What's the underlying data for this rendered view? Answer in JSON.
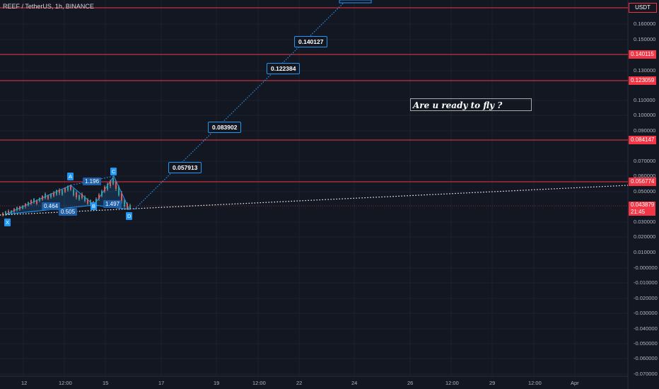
{
  "header": {
    "title": "REEF / TetherUS, 1h, BINANCE"
  },
  "price_axis": {
    "currency": "USDT",
    "tick_labels": [
      "0.160000",
      "0.150000",
      "0.130000",
      "0.110000",
      "0.100000",
      "0.090000",
      "0.070000",
      "0.060000",
      "0.050000",
      "0.030000",
      "0.020000",
      "0.010000",
      "-0.000000",
      "-0.010000",
      "-0.020000",
      "-0.030000",
      "-0.040000",
      "-0.050000",
      "-0.060000",
      "-0.070000"
    ],
    "levels": [
      {
        "value": "0.140115",
        "color": "#f23645"
      },
      {
        "value": "0.123059",
        "color": "#f23645"
      },
      {
        "value": "0.084147",
        "color": "#f23645"
      },
      {
        "value": "0.056774",
        "color": "#f23645"
      }
    ],
    "current_price": {
      "value": "0.043879",
      "countdown": "21:45",
      "color": "#f23645"
    }
  },
  "time_axis": {
    "labels": [
      "12",
      "12:00",
      "15",
      "17",
      "19",
      "12:00",
      "22",
      "24",
      "26",
      "12:00",
      "29",
      "12:00",
      "Apr"
    ]
  },
  "annotation": {
    "text": "Are u ready to fly ?"
  },
  "targets": [
    "0.057913",
    "0.083902",
    "0.122384",
    "0.140127"
  ],
  "pattern": {
    "points": [
      "X",
      "A",
      "B",
      "C",
      "D"
    ],
    "ratios": [
      "0.464",
      "1.196",
      "0.505",
      "1.497"
    ]
  }
}
